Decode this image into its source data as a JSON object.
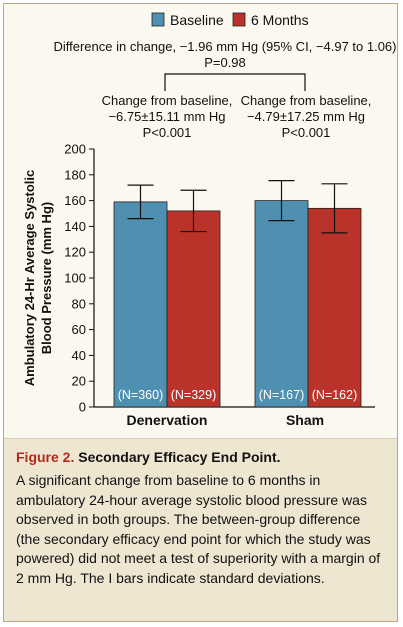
{
  "chart_data": {
    "type": "bar",
    "categories": [
      "Denervation",
      "Sham"
    ],
    "series": [
      {
        "name": "Baseline",
        "color": "#4f8fb0",
        "values": [
          159,
          160
        ],
        "sd": [
          13,
          15.5
        ],
        "n_labels": [
          "(N=360)",
          "(N=167)"
        ]
      },
      {
        "name": "6 Months",
        "color": "#b9332a",
        "values": [
          152,
          154
        ],
        "sd": [
          16,
          19
        ],
        "n_labels": [
          "(N=329)",
          "(N=162)"
        ]
      }
    ],
    "ylabel_lines": [
      "Ambulatory 24-Hr Average Systolic",
      "Blood Pressure (mm Hg)"
    ],
    "ylim": [
      0,
      200
    ],
    "yticks": [
      "0",
      "20",
      "40",
      "60",
      "80",
      "100",
      "120",
      "140",
      "160",
      "180",
      "200"
    ],
    "legend_position": "top",
    "annotations": {
      "difference_line1": "Difference in change, −1.96 mm Hg (95% CI, −4.97 to 1.06)",
      "difference_line2": "P=0.98",
      "denervation_change": [
        "Change from baseline,",
        "−6.75±15.11 mm Hg",
        "P<0.001"
      ],
      "sham_change": [
        "Change from baseline,",
        "−4.79±17.25 mm Hg",
        "P<0.001"
      ]
    }
  },
  "caption": {
    "figure_label": "Figure 2.",
    "title": "Secondary Efficacy End Point.",
    "body": "A significant change from baseline to 6 months in ambulatory 24-hour average systolic blood pressure was observed in both groups. The between-group difference (the secondary efficacy end point for which the study was powered) did not meet a test of superiority with a margin of 2 mm Hg. The I bars indicate standard deviations."
  }
}
